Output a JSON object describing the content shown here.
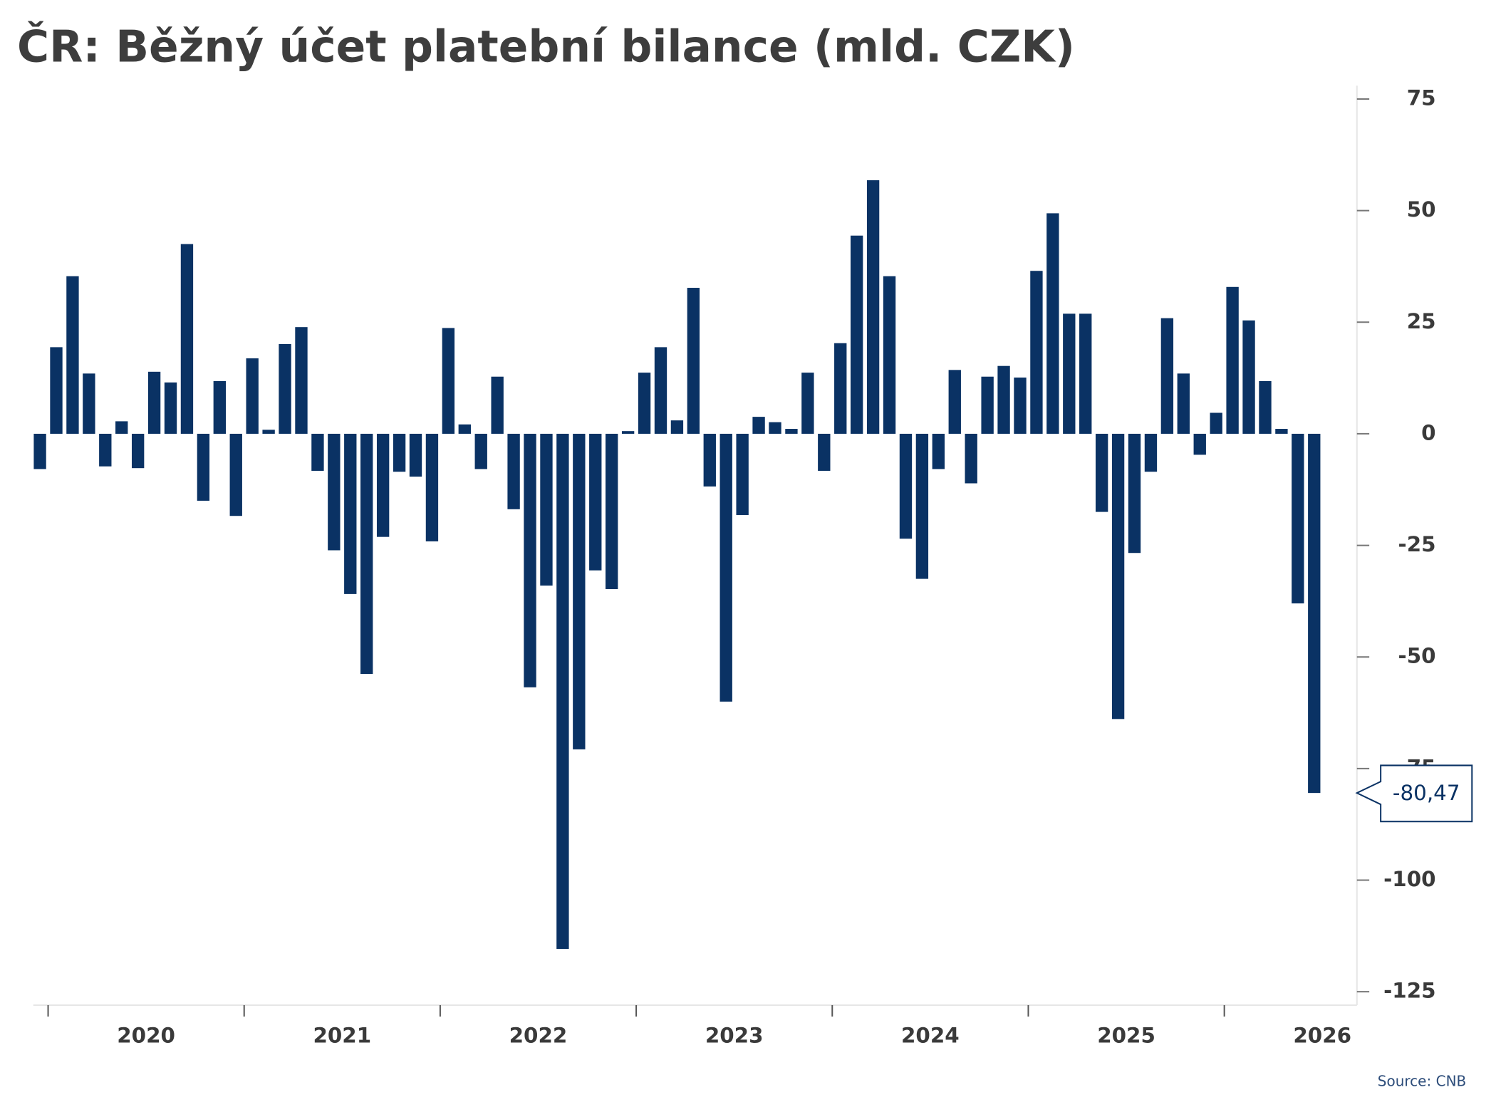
{
  "chart_data": {
    "type": "bar",
    "title": "ČR: Běžný účet platební bilance (mld. CZK)",
    "source": "Source: CNB",
    "color": "#0a3264",
    "categories": [
      null,
      null,
      null,
      null,
      null,
      null,
      null,
      null,
      null,
      null,
      null,
      null,
      null,
      null,
      null,
      null,
      null,
      null,
      null,
      null,
      null,
      null,
      null,
      null,
      null,
      null,
      null,
      null,
      null,
      null,
      null,
      null,
      null,
      null,
      null,
      null,
      null,
      null,
      null,
      null,
      null,
      null,
      null,
      null,
      null,
      null,
      null,
      null,
      null,
      null,
      null,
      null,
      null,
      null,
      null,
      null,
      null,
      null,
      null,
      null,
      null,
      null,
      null,
      null,
      null,
      null,
      null,
      null,
      null,
      null,
      null,
      null,
      null,
      null,
      null,
      null,
      null,
      null,
      null
    ],
    "values": [
      -7.9,
      19.4,
      35.3,
      13.5,
      -7.3,
      2.8,
      -7.7,
      13.9,
      11.5,
      42.5,
      -15,
      11.8,
      -18.4,
      16.9,
      0.9,
      20.1,
      23.9,
      -8.3,
      -26.1,
      -35.9,
      -53.8,
      -23.1,
      -8.5,
      -9.6,
      -24.1,
      23.7,
      2.1,
      -7.9,
      12.8,
      -16.9,
      -56.8,
      -34,
      -115.4,
      -70.7,
      -30.6,
      -34.8,
      0.6,
      13.7,
      19.4,
      3,
      32.7,
      -11.8,
      -60,
      -18.2,
      3.8,
      2.6,
      1.1,
      13.7,
      -8.3,
      20.3,
      44.4,
      56.8,
      35.3,
      -23.5,
      -32.5,
      -7.9,
      14.3,
      -11.1,
      12.8,
      15.2,
      12.6,
      36.5,
      49.4,
      26.9,
      26.9,
      -17.5,
      -63.9,
      -26.7,
      -8.5,
      25.9,
      13.5,
      -4.7,
      4.7,
      32.9,
      25.4,
      11.8,
      1.1,
      -38,
      -80.47
    ],
    "value_labels": [
      null,
      null,
      null,
      null,
      null,
      null,
      null,
      null,
      null,
      null,
      null,
      null,
      null,
      null,
      null,
      null,
      null,
      null,
      null,
      null,
      null,
      null,
      null,
      null,
      null,
      null,
      null,
      null,
      null,
      null,
      null,
      null,
      null,
      null,
      null,
      null,
      null,
      null,
      null,
      null,
      null,
      null,
      null,
      null,
      null,
      null,
      null,
      null,
      null,
      null,
      null,
      null,
      null,
      null,
      null,
      null,
      null,
      null,
      null,
      null,
      null,
      null,
      null,
      null,
      null,
      null,
      null,
      null,
      null,
      null,
      null,
      null,
      null,
      null,
      null,
      null,
      null,
      null,
      "-80,47"
    ],
    "year_labels": [
      "2020",
      "2021",
      "2022",
      "2023",
      "2024",
      "2025",
      "2026"
    ],
    "ylim": [
      -128,
      78
    ],
    "yticks": [
      -125,
      -100,
      -75,
      -50,
      -25,
      0,
      25,
      50,
      75
    ]
  }
}
